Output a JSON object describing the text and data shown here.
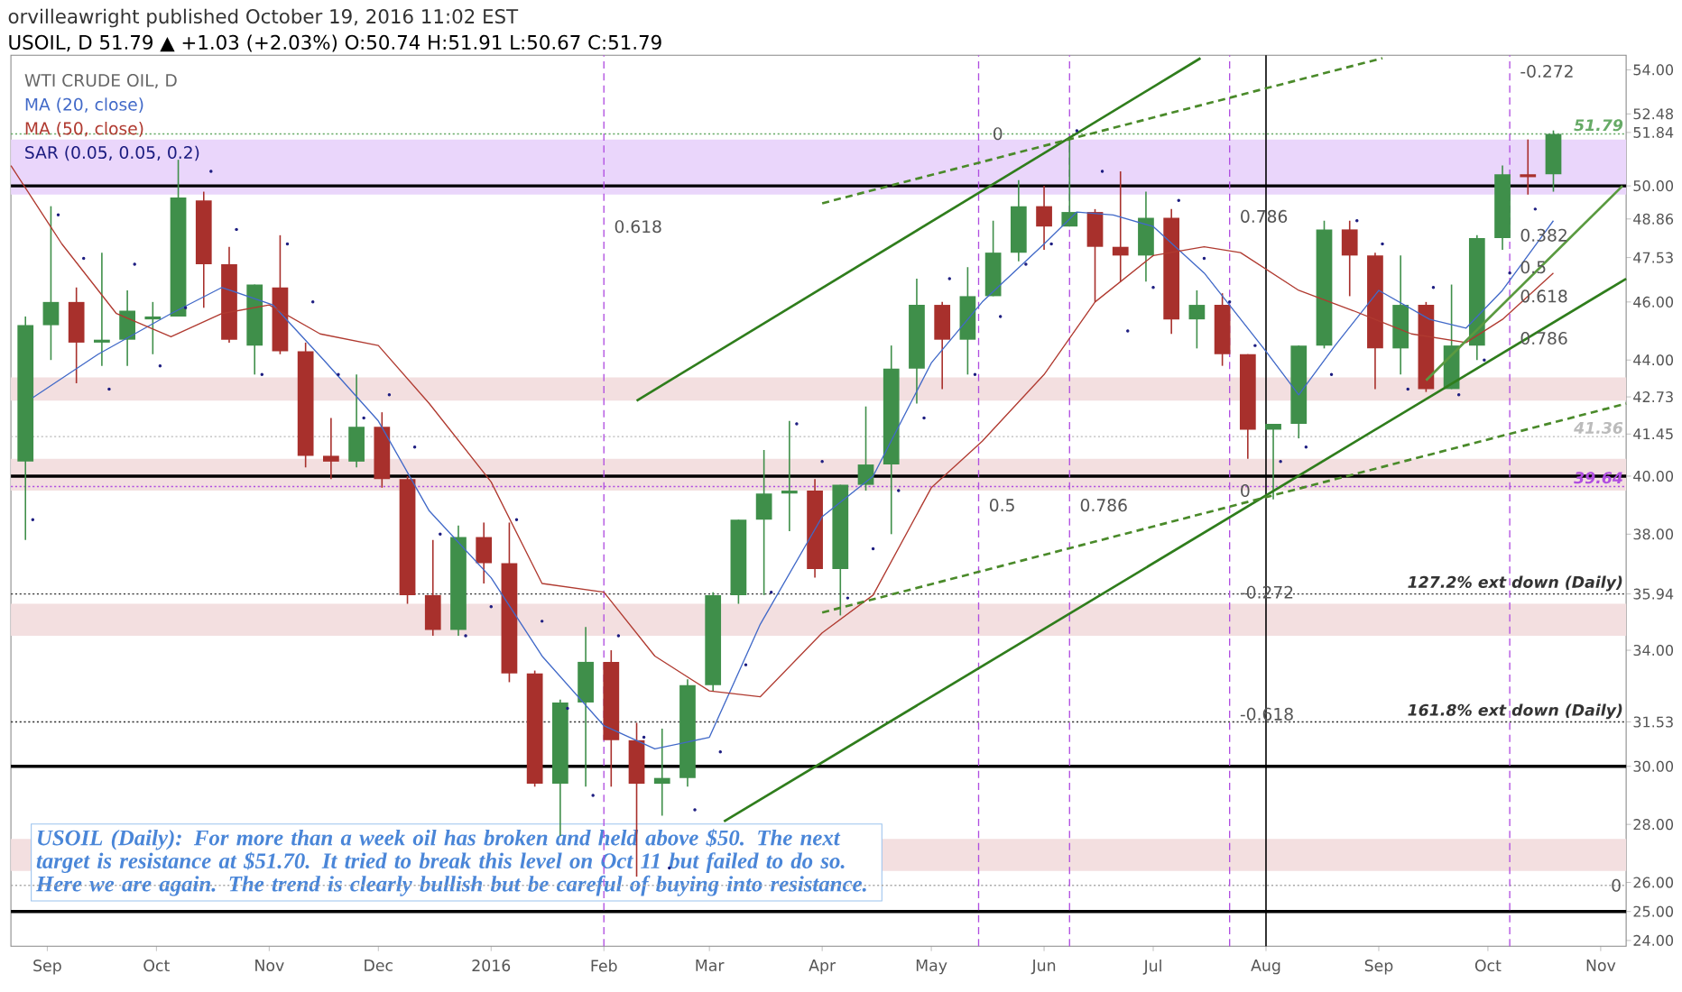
{
  "chart_data": {
    "type": "candlestick",
    "title": "WTI CRUDE OIL, D",
    "subtitle": "USOIL, D 51.79 ▲ +1.03 (+2.03%) O:50.74 H:51.91 L:50.67 C:51.79",
    "x": [
      "2015-08-26",
      "2015-09-02",
      "2015-09-09",
      "2015-09-16",
      "2015-09-23",
      "2015-09-30",
      "2015-10-07",
      "2015-10-14",
      "2015-10-21",
      "2015-10-28",
      "2015-11-04",
      "2015-11-11",
      "2015-11-18",
      "2015-11-25",
      "2015-12-02",
      "2015-12-09",
      "2015-12-16",
      "2015-12-23",
      "2015-12-30",
      "2016-01-06",
      "2016-01-13",
      "2016-01-20",
      "2016-01-27",
      "2016-02-03",
      "2016-02-10",
      "2016-02-17",
      "2016-02-24",
      "2016-03-02",
      "2016-03-09",
      "2016-03-16",
      "2016-03-23",
      "2016-03-30",
      "2016-04-06",
      "2016-04-13",
      "2016-04-20",
      "2016-04-27",
      "2016-05-04",
      "2016-05-11",
      "2016-05-18",
      "2016-05-25",
      "2016-06-01",
      "2016-06-08",
      "2016-06-15",
      "2016-06-22",
      "2016-06-29",
      "2016-07-06",
      "2016-07-13",
      "2016-07-20",
      "2016-07-27",
      "2016-08-03",
      "2016-08-10",
      "2016-08-17",
      "2016-08-24",
      "2016-08-31",
      "2016-09-07",
      "2016-09-14",
      "2016-09-21",
      "2016-09-28",
      "2016-10-05",
      "2016-10-12",
      "2016-10-19"
    ],
    "ohlc": [
      [
        40.5,
        45.5,
        37.8,
        45.2
      ],
      [
        45.2,
        49.3,
        44.0,
        46.0
      ],
      [
        46.0,
        46.5,
        43.2,
        44.6
      ],
      [
        44.6,
        47.7,
        43.8,
        44.7
      ],
      [
        44.7,
        46.4,
        43.8,
        45.7
      ],
      [
        45.4,
        46.0,
        44.2,
        45.5
      ],
      [
        45.5,
        50.9,
        45.5,
        49.6
      ],
      [
        49.5,
        49.8,
        45.8,
        47.3
      ],
      [
        47.3,
        47.9,
        44.6,
        44.7
      ],
      [
        44.5,
        46.6,
        43.5,
        46.6
      ],
      [
        46.5,
        48.3,
        44.2,
        44.3
      ],
      [
        44.3,
        44.6,
        40.3,
        40.7
      ],
      [
        40.7,
        42.0,
        39.9,
        40.5
      ],
      [
        40.5,
        43.5,
        40.3,
        41.7
      ],
      [
        41.7,
        42.2,
        39.6,
        39.9
      ],
      [
        39.9,
        40.0,
        35.6,
        35.9
      ],
      [
        35.9,
        37.8,
        34.5,
        34.7
      ],
      [
        34.7,
        38.3,
        34.5,
        37.9
      ],
      [
        37.9,
        38.4,
        36.3,
        37.0
      ],
      [
        37.0,
        38.4,
        32.9,
        33.2
      ],
      [
        33.2,
        33.3,
        29.3,
        29.4
      ],
      [
        29.4,
        32.3,
        27.6,
        32.2
      ],
      [
        32.2,
        34.8,
        29.3,
        33.6
      ],
      [
        33.6,
        34.0,
        29.3,
        30.9
      ],
      [
        30.9,
        31.5,
        26.2,
        29.4
      ],
      [
        29.4,
        31.3,
        28.3,
        29.6
      ],
      [
        29.6,
        33.0,
        29.3,
        32.8
      ],
      [
        32.8,
        36.0,
        32.6,
        35.9
      ],
      [
        35.9,
        38.5,
        35.6,
        38.5
      ],
      [
        38.5,
        40.9,
        35.9,
        39.4
      ],
      [
        39.4,
        41.9,
        38.1,
        39.5
      ],
      [
        39.5,
        39.9,
        36.5,
        36.8
      ],
      [
        36.8,
        39.7,
        35.2,
        39.7
      ],
      [
        39.7,
        42.4,
        39.5,
        40.4
      ],
      [
        40.4,
        44.5,
        38.0,
        43.7
      ],
      [
        43.7,
        46.8,
        42.5,
        45.9
      ],
      [
        45.9,
        46.0,
        43.0,
        44.7
      ],
      [
        44.7,
        47.2,
        43.5,
        46.2
      ],
      [
        46.2,
        48.8,
        46.2,
        47.7
      ],
      [
        47.7,
        50.2,
        47.4,
        49.3
      ],
      [
        49.3,
        50.0,
        47.8,
        48.6
      ],
      [
        48.6,
        51.7,
        48.6,
        49.1
      ],
      [
        49.1,
        49.2,
        46.0,
        47.9
      ],
      [
        47.9,
        50.5,
        46.7,
        47.6
      ],
      [
        47.6,
        49.8,
        46.7,
        48.9
      ],
      [
        48.9,
        49.2,
        44.9,
        45.4
      ],
      [
        45.4,
        46.4,
        44.4,
        45.9
      ],
      [
        45.9,
        46.3,
        43.8,
        44.2
      ],
      [
        44.2,
        44.2,
        40.6,
        41.6
      ],
      [
        41.6,
        41.8,
        39.2,
        41.8
      ],
      [
        41.8,
        44.5,
        41.3,
        44.5
      ],
      [
        44.5,
        48.8,
        44.4,
        48.5
      ],
      [
        48.5,
        48.8,
        46.2,
        47.6
      ],
      [
        47.6,
        47.7,
        43.0,
        44.4
      ],
      [
        44.4,
        47.6,
        43.5,
        45.9
      ],
      [
        45.9,
        46.0,
        42.9,
        43.0
      ],
      [
        43.0,
        46.6,
        43.0,
        44.5
      ],
      [
        44.5,
        48.3,
        44.0,
        48.2
      ],
      [
        48.2,
        50.7,
        47.8,
        50.4
      ],
      [
        50.4,
        51.6,
        49.7,
        50.3
      ],
      [
        50.4,
        51.91,
        49.8,
        51.79
      ]
    ],
    "series": [
      {
        "name": "MA (20, close)",
        "type": "line",
        "color": "#4169c8",
        "x": [
          "2015-08-28",
          "2015-09-15",
          "2015-10-05",
          "2015-10-19",
          "2015-11-02",
          "2015-11-16",
          "2015-12-01",
          "2015-12-15",
          "2016-01-01",
          "2016-01-15",
          "2016-02-01",
          "2016-02-15",
          "2016-03-01",
          "2016-03-15",
          "2016-04-01",
          "2016-04-15",
          "2016-05-01",
          "2016-05-15",
          "2016-06-01",
          "2016-06-10",
          "2016-06-20",
          "2016-07-01",
          "2016-07-15",
          "2016-08-01",
          "2016-08-10",
          "2016-08-20",
          "2016-09-01",
          "2016-09-15",
          "2016-09-25",
          "2016-10-05",
          "2016-10-19"
        ],
        "values": [
          42.7,
          44.2,
          45.6,
          46.5,
          45.9,
          44.0,
          41.9,
          38.8,
          36.5,
          33.8,
          31.4,
          30.6,
          31.0,
          34.9,
          38.6,
          40.0,
          43.9,
          46.0,
          48.0,
          49.1,
          49.0,
          48.6,
          47.0,
          44.3,
          42.8,
          44.5,
          46.4,
          45.4,
          45.1,
          46.4,
          48.8
        ]
      },
      {
        "name": "MA (50, close)",
        "type": "line",
        "color": "#b03a30",
        "x": [
          "2015-08-22",
          "2015-09-05",
          "2015-09-20",
          "2015-10-05",
          "2015-10-19",
          "2015-11-01",
          "2015-11-15",
          "2015-12-01",
          "2015-12-15",
          "2016-01-01",
          "2016-01-15",
          "2016-02-01",
          "2016-02-15",
          "2016-03-01",
          "2016-03-15",
          "2016-04-01",
          "2016-04-15",
          "2016-05-01",
          "2016-05-15",
          "2016-06-01",
          "2016-06-15",
          "2016-07-01",
          "2016-07-15",
          "2016-07-25",
          "2016-08-10",
          "2016-08-25",
          "2016-09-10",
          "2016-09-25",
          "2016-10-05",
          "2016-10-19"
        ],
        "values": [
          50.7,
          48.0,
          45.6,
          44.8,
          45.6,
          45.9,
          44.9,
          44.5,
          42.5,
          39.8,
          36.3,
          36.0,
          33.8,
          32.6,
          32.4,
          34.6,
          35.9,
          39.6,
          41.2,
          43.5,
          46.0,
          47.6,
          47.9,
          47.7,
          46.4,
          45.7,
          44.9,
          44.6,
          45.4,
          47.0
        ]
      },
      {
        "name": "SAR (0.05, 0.05, 0.2)",
        "type": "scatter",
        "color": "#1c1c80",
        "x": [
          "2015-08-28",
          "2015-09-04",
          "2015-09-11",
          "2015-09-18",
          "2015-09-25",
          "2015-10-02",
          "2015-10-09",
          "2015-10-16",
          "2015-10-23",
          "2015-10-30",
          "2015-11-06",
          "2015-11-13",
          "2015-11-20",
          "2015-11-27",
          "2015-12-04",
          "2015-12-11",
          "2015-12-18",
          "2015-12-25",
          "2016-01-01",
          "2016-01-08",
          "2016-01-15",
          "2016-01-22",
          "2016-01-29",
          "2016-02-05",
          "2016-02-12",
          "2016-02-19",
          "2016-02-26",
          "2016-03-04",
          "2016-03-11",
          "2016-03-18",
          "2016-03-25",
          "2016-04-01",
          "2016-04-08",
          "2016-04-15",
          "2016-04-22",
          "2016-04-29",
          "2016-05-06",
          "2016-05-13",
          "2016-05-20",
          "2016-05-27",
          "2016-06-03",
          "2016-06-10",
          "2016-06-17",
          "2016-06-24",
          "2016-07-01",
          "2016-07-08",
          "2016-07-15",
          "2016-07-22",
          "2016-07-29",
          "2016-08-05",
          "2016-08-12",
          "2016-08-19",
          "2016-08-26",
          "2016-09-02",
          "2016-09-09",
          "2016-09-16",
          "2016-09-23",
          "2016-09-30",
          "2016-10-07",
          "2016-10-14"
        ],
        "values": [
          38.5,
          49.0,
          47.5,
          43.0,
          47.3,
          43.8,
          45.8,
          50.5,
          48.5,
          43.5,
          48.0,
          46.0,
          43.5,
          42.0,
          42.8,
          41.0,
          38.0,
          34.5,
          35.5,
          38.5,
          35.0,
          32.0,
          29.0,
          34.5,
          31.0,
          26.5,
          28.5,
          30.5,
          33.5,
          36.0,
          41.8,
          40.5,
          35.8,
          37.5,
          39.5,
          42.0,
          46.8,
          43.5,
          45.5,
          47.3,
          48.0,
          51.9,
          50.5,
          45.0,
          46.5,
          49.5,
          47.5,
          46.0,
          44.5,
          40.5,
          41.0,
          43.5,
          48.8,
          48.0,
          43.0,
          46.5,
          42.8,
          44.0,
          47.0,
          49.2
        ]
      },
      {
        "type": "line",
        "color": "#2f7d1c",
        "x": [
          "2016-02-10",
          "2016-07-14"
        ],
        "values": [
          42.6,
          54.4
        ]
      },
      {
        "type": "line",
        "color": "#2f7d1c",
        "x": [
          "2016-03-05",
          "2016-11-08"
        ],
        "values": [
          28.1,
          46.8
        ]
      },
      {
        "type": "line",
        "color": "#5a9a40",
        "x": [
          "2016-09-14",
          "2016-11-07"
        ],
        "values": [
          43.3,
          50.0
        ]
      },
      {
        "type": "line",
        "color": "#4a8a2a",
        "line_style": "dashed",
        "x": [
          "2016-04-01",
          "2016-09-02"
        ],
        "values": [
          49.4,
          54.4
        ]
      },
      {
        "type": "line",
        "color": "#4a8a2a",
        "line_style": "dashed",
        "x": [
          "2016-04-01",
          "2016-11-08"
        ],
        "values": [
          35.3,
          42.5
        ]
      }
    ],
    "xlim": [
      "2015-08-22",
      "2016-11-08"
    ],
    "ylim": [
      23.8,
      54.5
    ],
    "xticks": [
      {
        "value": "2015-09-01",
        "label": "Sep"
      },
      {
        "value": "2015-10-01",
        "label": "Oct"
      },
      {
        "value": "2015-11-01",
        "label": "Nov"
      },
      {
        "value": "2015-12-01",
        "label": "Dec"
      },
      {
        "value": "2016-01-01",
        "label": "2016"
      },
      {
        "value": "2016-02-01",
        "label": "Feb"
      },
      {
        "value": "2016-03-01",
        "label": "Mar"
      },
      {
        "value": "2016-04-01",
        "label": "Apr"
      },
      {
        "value": "2016-05-01",
        "label": "May"
      },
      {
        "value": "2016-06-01",
        "label": "Jun"
      },
      {
        "value": "2016-07-01",
        "label": "Jul"
      },
      {
        "value": "2016-08-01",
        "label": "Aug"
      },
      {
        "value": "2016-09-01",
        "label": "Sep"
      },
      {
        "value": "2016-10-01",
        "label": "Oct"
      },
      {
        "value": "2016-11-01",
        "label": "Nov"
      }
    ],
    "yticks": [
      {
        "value": 54,
        "label": "54.00"
      },
      {
        "value": 52.48,
        "label": "52.48"
      },
      {
        "value": 51.84,
        "label": "51.84"
      },
      {
        "value": 50,
        "label": "50.00"
      },
      {
        "value": 48.86,
        "label": "48.86"
      },
      {
        "value": 47.53,
        "label": "47.53"
      },
      {
        "value": 46,
        "label": "46.00"
      },
      {
        "value": 44,
        "label": "44.00"
      },
      {
        "value": 42.73,
        "label": "42.73"
      },
      {
        "value": 41.45,
        "label": "41.45"
      },
      {
        "value": 40,
        "label": "40.00"
      },
      {
        "value": 38,
        "label": "38.00"
      },
      {
        "value": 35.94,
        "label": "35.94"
      },
      {
        "value": 34,
        "label": "34.00"
      },
      {
        "value": 31.53,
        "label": "31.53"
      },
      {
        "value": 30,
        "label": "30.00"
      },
      {
        "value": 28,
        "label": "28.00"
      },
      {
        "value": 26,
        "label": "26.00"
      },
      {
        "value": 25,
        "label": "25.00"
      },
      {
        "value": 24,
        "label": "24.00"
      }
    ],
    "legend": "top left",
    "bands": [
      {
        "axis": "y",
        "from": 49.7,
        "to": 51.6,
        "color": "#ead6fb"
      },
      {
        "axis": "y",
        "from": 42.6,
        "to": 43.4,
        "color": "#f3dfe0"
      },
      {
        "axis": "y",
        "from": 39.5,
        "to": 40.6,
        "color": "#f3dfe0"
      },
      {
        "axis": "y",
        "from": 34.5,
        "to": 35.6,
        "color": "#f3dfe0"
      },
      {
        "axis": "y",
        "from": 26.4,
        "to": 27.5,
        "color": "#f3dfe0"
      }
    ],
    "ref_lines": [
      {
        "axis": "y",
        "value": 50,
        "color": "#000000",
        "line_style": "solid"
      },
      {
        "axis": "y",
        "value": 40,
        "color": "#000000",
        "line_style": "solid"
      },
      {
        "axis": "y",
        "value": 30,
        "color": "#000000",
        "line_style": "solid"
      },
      {
        "axis": "y",
        "value": 25,
        "color": "#000000",
        "line_style": "solid"
      },
      {
        "axis": "y",
        "value": 51.79,
        "color": "#66aa66",
        "line_style": "dotted",
        "label": "51.79"
      },
      {
        "axis": "y",
        "value": 35.94,
        "color": "#333333",
        "line_style": "dotted",
        "label": "127.2% ext down (Daily)"
      },
      {
        "axis": "y",
        "value": 31.53,
        "color": "#333333",
        "line_style": "dotted",
        "label": "161.8% ext down (Daily)"
      },
      {
        "axis": "y",
        "value": 25.9,
        "color": "#aaaaaa",
        "line_style": "dotted"
      },
      {
        "axis": "y",
        "value": 41.36,
        "color": "#bbbbbb",
        "line_style": "dotted",
        "label": "41.36"
      },
      {
        "axis": "y",
        "value": 39.64,
        "color": "#b04ee0",
        "line_style": "dotted",
        "label": "39.64"
      },
      {
        "axis": "x",
        "value": "2016-02-01",
        "color": "#b04ee0",
        "line_style": "dashed"
      },
      {
        "axis": "x",
        "value": "2016-05-14",
        "color": "#b04ee0",
        "line_style": "dashed"
      },
      {
        "axis": "x",
        "value": "2016-06-08",
        "color": "#b04ee0",
        "line_style": "dashed"
      },
      {
        "axis": "x",
        "value": "2016-07-22",
        "color": "#b04ee0",
        "line_style": "dashed"
      },
      {
        "axis": "x",
        "value": "2016-10-07",
        "color": "#b04ee0",
        "line_style": "dashed"
      },
      {
        "axis": "x",
        "value": "2016-08-01",
        "color": "#000000",
        "line_style": "solid"
      }
    ],
    "annotations": [
      "orvilleawright published October 19, 2016 11:02 EST",
      "USOIL (Daily): For more than a week oil has broken and held above $50. The next target is resistance at $51.70. It tried to break this level on Oct 11 but failed to do so. Here we are again. The trend is clearly bullish but be careful of buying into resistance.",
      {
        "text": "0.618",
        "x": "2016-02-03",
        "y": 48.6
      },
      {
        "text": "0",
        "x": "2016-05-17",
        "y": 51.8
      },
      {
        "text": "0.786",
        "x": "2016-07-24",
        "y": 48.95
      },
      {
        "text": "0.5",
        "x": "2016-05-16",
        "y": 39.0
      },
      {
        "text": "0.786",
        "x": "2016-06-10",
        "y": 39.0
      },
      {
        "text": "0.382",
        "x": "2016-10-09",
        "y": 48.3
      },
      {
        "text": "0.5",
        "x": "2016-10-09",
        "y": 47.2
      },
      {
        "text": "0.618",
        "x": "2016-10-09",
        "y": 46.2
      },
      {
        "text": "0.786",
        "x": "2016-10-09",
        "y": 44.75
      },
      {
        "text": "-0.272",
        "x": "2016-10-09",
        "y": 53.95
      },
      {
        "text": "0",
        "x": "2016-07-24",
        "y": 39.5
      },
      {
        "text": "-0.272",
        "x": "2016-07-24",
        "y": 36.0
      },
      {
        "text": "-0.618",
        "x": "2016-07-24",
        "y": 31.8
      },
      {
        "text": "0",
        "x": "2016-11-03",
        "y": 25.9
      }
    ]
  }
}
